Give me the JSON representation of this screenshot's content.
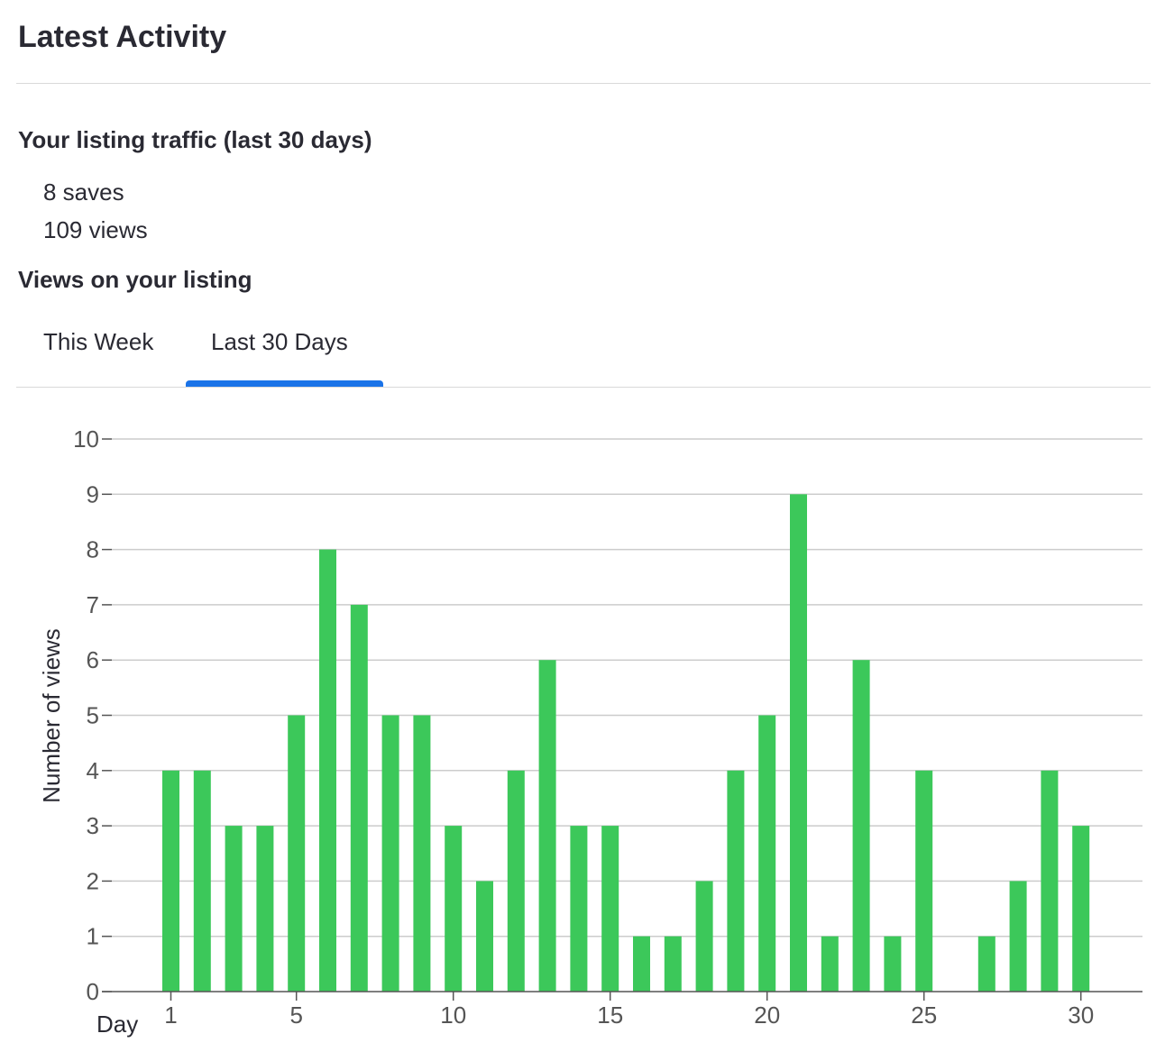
{
  "header": {
    "title": "Latest Activity"
  },
  "traffic": {
    "heading": "Your listing traffic (last 30 days)",
    "saves": "8 saves",
    "views": "109 views"
  },
  "views_section": {
    "heading": "Views on your listing",
    "tabs": [
      {
        "label": "This Week",
        "active": false
      },
      {
        "label": "Last 30 Days",
        "active": true
      }
    ]
  },
  "colors": {
    "bar": "#3cc85a",
    "tab_indicator": "#1a73e8",
    "grid": "#cccccc"
  },
  "chart_data": {
    "type": "bar",
    "xlabel": "Day",
    "ylabel": "Number of views",
    "ylim": [
      0,
      10
    ],
    "y_ticks": [
      0,
      1,
      2,
      3,
      4,
      5,
      6,
      7,
      8,
      9,
      10
    ],
    "x_ticks": [
      1,
      5,
      10,
      15,
      20,
      25,
      30
    ],
    "grid": true,
    "categories": [
      1,
      2,
      3,
      4,
      5,
      6,
      7,
      8,
      9,
      10,
      11,
      12,
      13,
      14,
      15,
      16,
      17,
      18,
      19,
      20,
      21,
      22,
      23,
      24,
      25,
      26,
      27,
      28,
      29,
      30
    ],
    "values": [
      4,
      4,
      3,
      3,
      5,
      8,
      7,
      5,
      5,
      3,
      2,
      4,
      6,
      3,
      3,
      1,
      1,
      2,
      4,
      5,
      9,
      1,
      6,
      1,
      4,
      0,
      1,
      2,
      4,
      3
    ]
  }
}
